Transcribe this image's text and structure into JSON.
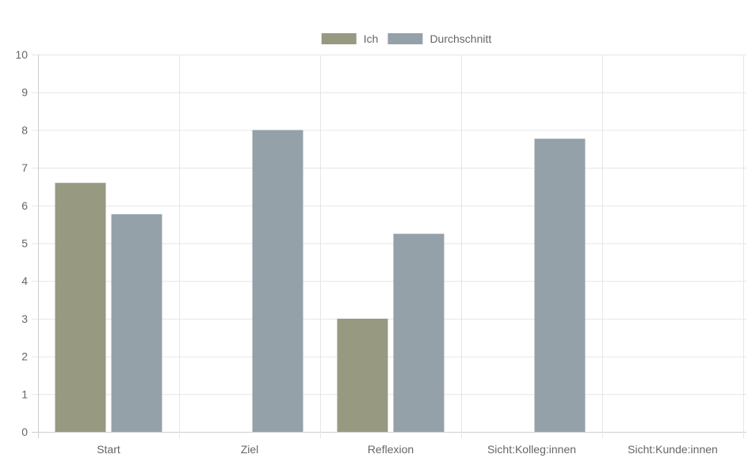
{
  "chart_data": {
    "type": "bar",
    "categories": [
      "Start",
      "Ziel",
      "Reflexion",
      "Sicht:Kolleg:innen",
      "Sicht:Kunde:innen"
    ],
    "series": [
      {
        "name": "Ich",
        "values": [
          6.6,
          null,
          3,
          null,
          null
        ],
        "color": "#979a81"
      },
      {
        "name": "Durchschnitt",
        "values": [
          5.77,
          8,
          5.25,
          7.77,
          null
        ],
        "color": "#95a1a9"
      }
    ],
    "yticks": [
      "0",
      "1",
      "2",
      "3",
      "4",
      "5",
      "6",
      "7",
      "8",
      "9",
      "10"
    ],
    "ylim": [
      0,
      10
    ],
    "grid": true,
    "legend_position": "top-center",
    "colors": {
      "grid": "#e6e6e6",
      "tick_text": "#666666"
    }
  }
}
